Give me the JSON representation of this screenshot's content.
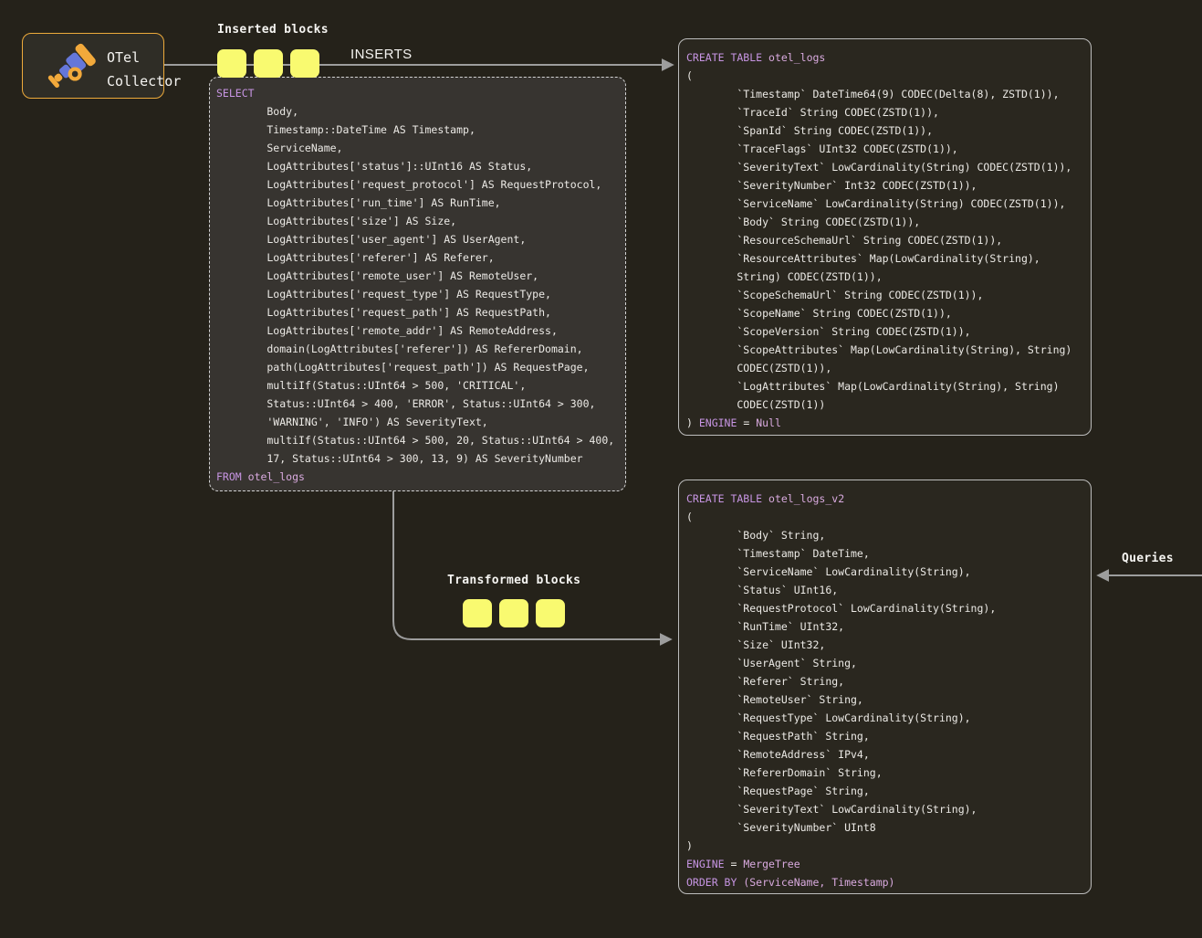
{
  "colors": {
    "bg": "#25221a",
    "selectBg": "#373430",
    "createBg": "#2a271f",
    "otelBg": "#2f2d26",
    "border": "#bdbdbd",
    "dashedBorder": "#d4d4d4",
    "otelBorder": "#edaa3b",
    "arrow": "#9d9d9d",
    "yellow": "#f9fa70",
    "kw": "#c795e3",
    "nm": "#d9aadf",
    "code": "#eceae6",
    "label": "#f5f4f1",
    "iconBlue": "#6577d9",
    "iconAmber": "#f2a93b"
  },
  "otel": {
    "line1": "OTel",
    "line2": "Collector",
    "icon": "telescope-icon"
  },
  "labels": {
    "inserted_blocks": "Inserted blocks",
    "inserts": "INSERTS",
    "transformed_blocks": "Transformed blocks",
    "queries": "Queries"
  },
  "inserted_blocks": {
    "count": 3
  },
  "transformed_blocks": {
    "count": 3
  },
  "select_query": {
    "lines": [
      [
        [
          "kw",
          "SELECT"
        ]
      ],
      [
        [
          "pl",
          "        Body,"
        ]
      ],
      [
        [
          "pl",
          "        Timestamp::DateTime AS Timestamp,"
        ]
      ],
      [
        [
          "pl",
          "        ServiceName,"
        ]
      ],
      [
        [
          "pl",
          "        LogAttributes['status']::UInt16 AS Status,"
        ]
      ],
      [
        [
          "pl",
          "        LogAttributes['request_protocol'] AS RequestProtocol,"
        ]
      ],
      [
        [
          "pl",
          "        LogAttributes['run_time'] AS RunTime,"
        ]
      ],
      [
        [
          "pl",
          "        LogAttributes['size'] AS Size,"
        ]
      ],
      [
        [
          "pl",
          "        LogAttributes['user_agent'] AS UserAgent,"
        ]
      ],
      [
        [
          "pl",
          "        LogAttributes['referer'] AS Referer,"
        ]
      ],
      [
        [
          "pl",
          "        LogAttributes['remote_user'] AS RemoteUser,"
        ]
      ],
      [
        [
          "pl",
          "        LogAttributes['request_type'] AS RequestType,"
        ]
      ],
      [
        [
          "pl",
          "        LogAttributes['request_path'] AS RequestPath,"
        ]
      ],
      [
        [
          "pl",
          "        LogAttributes['remote_addr'] AS RemoteAddress,"
        ]
      ],
      [
        [
          "pl",
          "        domain(LogAttributes['referer']) AS RefererDomain,"
        ]
      ],
      [
        [
          "pl",
          "        path(LogAttributes['request_path']) AS RequestPage,"
        ]
      ],
      [
        [
          "pl",
          "        multiIf(Status::UInt64 > 500, 'CRITICAL',"
        ]
      ],
      [
        [
          "pl",
          "        Status::UInt64 > 400, 'ERROR', Status::UInt64 > 300,"
        ]
      ],
      [
        [
          "pl",
          "        'WARNING', 'INFO') AS SeverityText,"
        ]
      ],
      [
        [
          "pl",
          "        multiIf(Status::UInt64 > 500, 20, Status::UInt64 > 400,"
        ]
      ],
      [
        [
          "pl",
          "        17, Status::UInt64 > 300, 13, 9) AS SeverityNumber"
        ]
      ],
      [
        [
          "kw",
          "FROM"
        ],
        [
          "pl",
          " "
        ],
        [
          "nm",
          "otel_logs"
        ]
      ]
    ]
  },
  "create_table_otel_logs": {
    "lines": [
      [
        [
          "kw",
          "CREATE TABLE"
        ],
        [
          "pl",
          " "
        ],
        [
          "nm",
          "otel_logs"
        ]
      ],
      [
        [
          "pl",
          "("
        ]
      ],
      [
        [
          "pl",
          "        `Timestamp` DateTime64(9) CODEC(Delta(8), ZSTD(1)),"
        ]
      ],
      [
        [
          "pl",
          "        `TraceId` String CODEC(ZSTD(1)),"
        ]
      ],
      [
        [
          "pl",
          "        `SpanId` String CODEC(ZSTD(1)),"
        ]
      ],
      [
        [
          "pl",
          "        `TraceFlags` UInt32 CODEC(ZSTD(1)),"
        ]
      ],
      [
        [
          "pl",
          "        `SeverityText` LowCardinality(String) CODEC(ZSTD(1)),"
        ]
      ],
      [
        [
          "pl",
          "        `SeverityNumber` Int32 CODEC(ZSTD(1)),"
        ]
      ],
      [
        [
          "pl",
          "        `ServiceName` LowCardinality(String) CODEC(ZSTD(1)),"
        ]
      ],
      [
        [
          "pl",
          "        `Body` String CODEC(ZSTD(1)),"
        ]
      ],
      [
        [
          "pl",
          "        `ResourceSchemaUrl` String CODEC(ZSTD(1)),"
        ]
      ],
      [
        [
          "pl",
          "        `ResourceAttributes` Map(LowCardinality(String),"
        ]
      ],
      [
        [
          "pl",
          "        String) CODEC(ZSTD(1)),"
        ]
      ],
      [
        [
          "pl",
          "        `ScopeSchemaUrl` String CODEC(ZSTD(1)),"
        ]
      ],
      [
        [
          "pl",
          "        `ScopeName` String CODEC(ZSTD(1)),"
        ]
      ],
      [
        [
          "pl",
          "        `ScopeVersion` String CODEC(ZSTD(1)),"
        ]
      ],
      [
        [
          "pl",
          "        `ScopeAttributes` Map(LowCardinality(String), String)"
        ]
      ],
      [
        [
          "pl",
          "        CODEC(ZSTD(1)),"
        ]
      ],
      [
        [
          "pl",
          "        `LogAttributes` Map(LowCardinality(String), String)"
        ]
      ],
      [
        [
          "pl",
          "        CODEC(ZSTD(1))"
        ]
      ],
      [
        [
          "pl",
          ") "
        ],
        [
          "kw",
          "ENGINE"
        ],
        [
          "pl",
          " = "
        ],
        [
          "nm",
          "Null"
        ]
      ]
    ]
  },
  "create_table_otel_logs_v2": {
    "lines": [
      [
        [
          "kw",
          "CREATE TABLE"
        ],
        [
          "pl",
          " "
        ],
        [
          "nm",
          "otel_logs_v2"
        ]
      ],
      [
        [
          "pl",
          "("
        ]
      ],
      [
        [
          "pl",
          "        `Body` String,"
        ]
      ],
      [
        [
          "pl",
          "        `Timestamp` DateTime,"
        ]
      ],
      [
        [
          "pl",
          "        `ServiceName` LowCardinality(String),"
        ]
      ],
      [
        [
          "pl",
          "        `Status` UInt16,"
        ]
      ],
      [
        [
          "pl",
          "        `RequestProtocol` LowCardinality(String),"
        ]
      ],
      [
        [
          "pl",
          "        `RunTime` UInt32,"
        ]
      ],
      [
        [
          "pl",
          "        `Size` UInt32,"
        ]
      ],
      [
        [
          "pl",
          "        `UserAgent` String,"
        ]
      ],
      [
        [
          "pl",
          "        `Referer` String,"
        ]
      ],
      [
        [
          "pl",
          "        `RemoteUser` String,"
        ]
      ],
      [
        [
          "pl",
          "        `RequestType` LowCardinality(String),"
        ]
      ],
      [
        [
          "pl",
          "        `RequestPath` String,"
        ]
      ],
      [
        [
          "pl",
          "        `RemoteAddress` IPv4,"
        ]
      ],
      [
        [
          "pl",
          "        `RefererDomain` String,"
        ]
      ],
      [
        [
          "pl",
          "        `RequestPage` String,"
        ]
      ],
      [
        [
          "pl",
          "        `SeverityText` LowCardinality(String),"
        ]
      ],
      [
        [
          "pl",
          "        `SeverityNumber` UInt8"
        ]
      ],
      [
        [
          "pl",
          ")"
        ]
      ],
      [
        [
          "kw",
          "ENGINE"
        ],
        [
          "pl",
          " = "
        ],
        [
          "nm",
          "MergeTree"
        ]
      ],
      [
        [
          "kw",
          "ORDER BY"
        ],
        [
          "nm",
          " (ServiceName, Timestamp)"
        ]
      ]
    ]
  }
}
